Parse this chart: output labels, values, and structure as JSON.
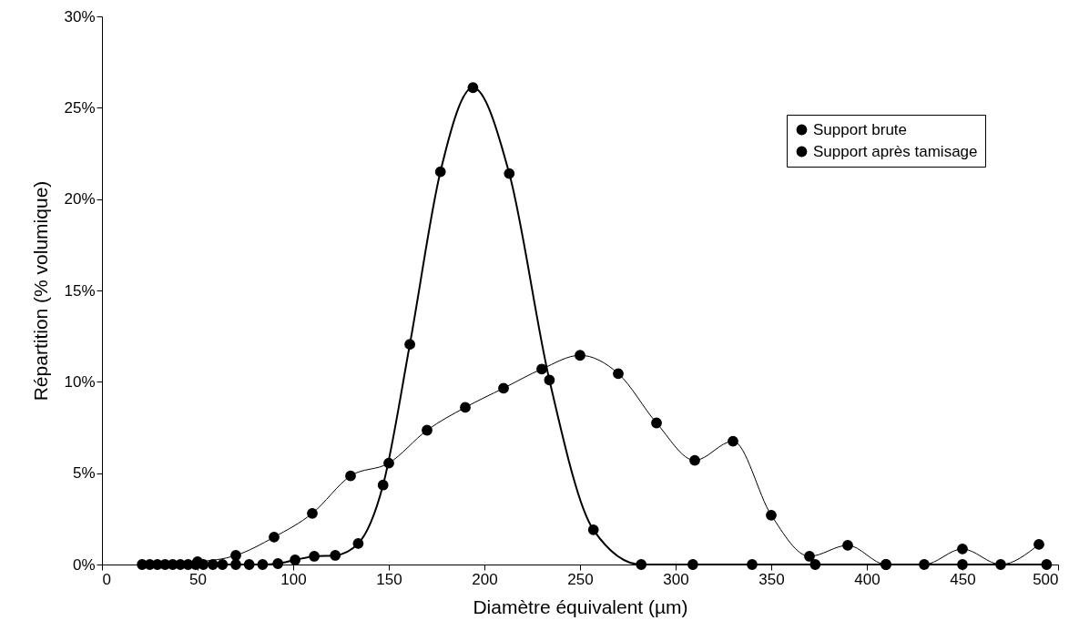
{
  "chart_data": {
    "type": "line",
    "xlabel": "Diamètre équivalent (µm)",
    "ylabel": "Répartition (% volumique)",
    "xlim": [
      0,
      500
    ],
    "xticks": [
      0,
      50,
      100,
      150,
      200,
      250,
      300,
      350,
      400,
      450,
      500
    ],
    "ylim": [
      0,
      30
    ],
    "yticks": [
      {
        "value": 0,
        "label": "0%"
      },
      {
        "value": 5,
        "label": "5%"
      },
      {
        "value": 10,
        "label": "10%"
      },
      {
        "value": 15,
        "label": "15%"
      },
      {
        "value": 20,
        "label": "20%"
      },
      {
        "value": 25,
        "label": "25%"
      },
      {
        "value": 30,
        "label": "30%"
      }
    ],
    "grid": false,
    "legend": "top right",
    "marker": "circle",
    "line_style": "solid",
    "series": [
      {
        "name": "Support brute",
        "color": "#000000",
        "x": [
          50,
          70,
          90,
          110,
          130,
          150,
          170,
          190,
          210,
          230,
          250,
          270,
          290,
          310,
          330,
          350,
          370,
          390,
          410,
          430,
          450,
          470,
          490
        ],
        "values": [
          0.15,
          0.5,
          1.5,
          2.8,
          4.85,
          5.55,
          7.35,
          8.6,
          9.65,
          10.7,
          11.45,
          10.45,
          7.75,
          5.7,
          6.75,
          2.7,
          0.45,
          1.05,
          0,
          0,
          0.85,
          0,
          1.1
        ]
      },
      {
        "name": "Support après tamisage",
        "color": "#000000",
        "x": [
          21,
          25,
          29,
          33,
          37,
          41,
          45,
          49,
          53,
          58,
          63,
          70,
          77,
          84,
          92,
          101,
          111,
          122,
          134,
          147,
          161,
          177,
          194,
          213,
          234,
          257,
          282,
          309,
          340,
          373,
          410,
          450,
          494
        ],
        "values": [
          0,
          0,
          0,
          0,
          0,
          0,
          0,
          0,
          0,
          0,
          0,
          0,
          0,
          0,
          0.05,
          0.25,
          0.45,
          0.5,
          1.15,
          4.35,
          12.05,
          21.5,
          26.1,
          21.4,
          10.1,
          1.9,
          0,
          0,
          0,
          0,
          0,
          0,
          0
        ]
      }
    ]
  }
}
